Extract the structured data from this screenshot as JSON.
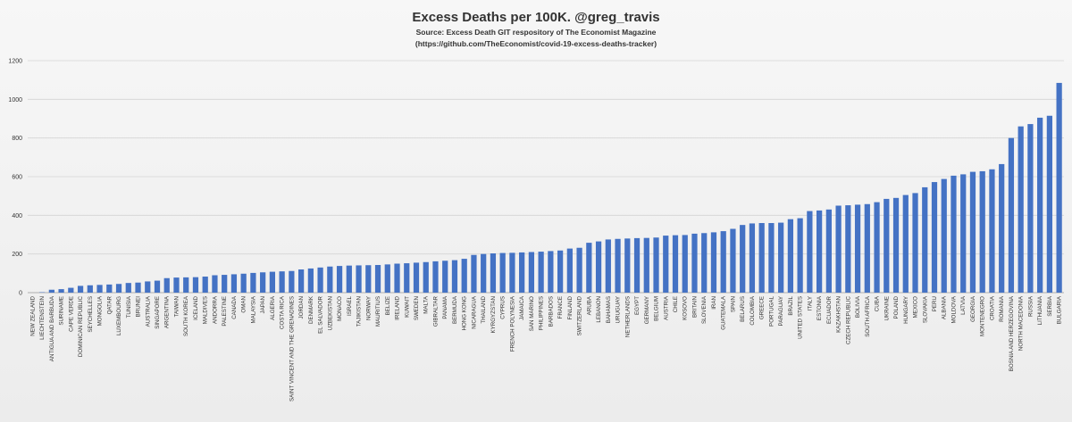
{
  "chart_data": {
    "type": "bar",
    "title": "Excess Deaths per 100K.  @greg_travis",
    "subtitle_line1": "Source: Excess Death GIT respository of The Economist Magazine",
    "subtitle_line2": "(https://github.com/TheEconomist/covid-19-excess-deaths-tracker)",
    "xlabel": "",
    "ylabel": "",
    "ylim": [
      0,
      1200
    ],
    "yticks": [
      0,
      200,
      400,
      600,
      800,
      1000,
      1200
    ],
    "grid": true,
    "bar_color": "#4472c4",
    "categories": [
      "NEW ZEALAND",
      "LIECHTENSTEIN",
      "ANTIGUA AND BARBUDA",
      "SURINAME",
      "CAPE VERDE",
      "DOMINICAN REPUBLIC",
      "SEYCHELLES",
      "MONGOLIA",
      "QATAR",
      "LUXEMBOURG",
      "TUNISIA",
      "BRUNEI",
      "AUSTRALIA",
      "SINGAPORE",
      "ARGENTINA",
      "TAIWAN",
      "SOUTH KOREA",
      "ICELAND",
      "MALDIVES",
      "ANDORRA",
      "PALESTINE",
      "CANADA",
      "OMAN",
      "MALAYSIA",
      "JAPAN",
      "ALGERIA",
      "COSTA RICA",
      "SAINT VINCENT AND THE GRENADINES",
      "JORDAN",
      "DENMARK",
      "EL SALVADOR",
      "UZBEKISTAN",
      "MONACO",
      "ISRAEL",
      "TAJIKISTAN",
      "NORWAY",
      "MAURITIUS",
      "BELIZE",
      "IRELAND",
      "KUWAIT",
      "SWEDEN",
      "MALTA",
      "GIBRALTAR",
      "PANAMA",
      "BERMUDA",
      "HONG KONG",
      "NICARAGUA",
      "THAILAND",
      "KYRGYZSTAN",
      "CYPRUS",
      "FRENCH POLYNESIA",
      "JAMAICA",
      "SAN MARINO",
      "PHILIPPINES",
      "BARBADOS",
      "FRANCE",
      "FINLAND",
      "SWITZERLAND",
      "ARUBA",
      "LEBANON",
      "BAHAMAS",
      "URUGUAY",
      "NETHERLANDS",
      "EGYPT",
      "GERMANY",
      "BELGIUM",
      "AUSTRIA",
      "CHILE",
      "KOSOVO",
      "BRITAIN",
      "SLOVENIA",
      "IRAN",
      "GUATEMALA",
      "SPAIN",
      "BELARUS",
      "COLOMBIA",
      "GREECE",
      "PORTUGAL",
      "PARAGUAY",
      "BRAZIL",
      "UNITED STATES",
      "ITALY",
      "ESTONIA",
      "ECUADOR",
      "KAZAKHSTAN",
      "CZECH REPUBLIC",
      "BOLIVIA",
      "SOUTH AFRICA",
      "CUBA",
      "UKRAINE",
      "POLAND",
      "HUNGARY",
      "MEXICO",
      "SLOVAKIA",
      "PERU",
      "ALBANIA",
      "MOLDOVA",
      "LATVIA",
      "GEORGIA",
      "MONTENEGRO",
      "CROATIA",
      "ROMANIA",
      "BOSNIA AND HERZEGOVINA",
      "NORTH MACEDONIA",
      "RUSSIA",
      "LITHUANIA",
      "SERBIA",
      "BULGARIA"
    ],
    "values": [
      0,
      2,
      15,
      18,
      25,
      35,
      38,
      40,
      42,
      45,
      50,
      52,
      58,
      62,
      75,
      78,
      79,
      80,
      83,
      90,
      92,
      95,
      98,
      102,
      105,
      108,
      110,
      112,
      120,
      125,
      130,
      135,
      138,
      140,
      141,
      142,
      143,
      146,
      150,
      152,
      155,
      158,
      162,
      165,
      168,
      175,
      195,
      200,
      203,
      205,
      206,
      208,
      210,
      212,
      215,
      218,
      228,
      232,
      258,
      265,
      275,
      278,
      280,
      282,
      283,
      285,
      295,
      297,
      298,
      305,
      308,
      312,
      318,
      330,
      350,
      358,
      360,
      360,
      362,
      380,
      385,
      422,
      425,
      430,
      450,
      452,
      455,
      458,
      468,
      485,
      490,
      505,
      515,
      545,
      572,
      588,
      605,
      612,
      625,
      628,
      638,
      665,
      800,
      860,
      872,
      905,
      915,
      1085
    ]
  }
}
